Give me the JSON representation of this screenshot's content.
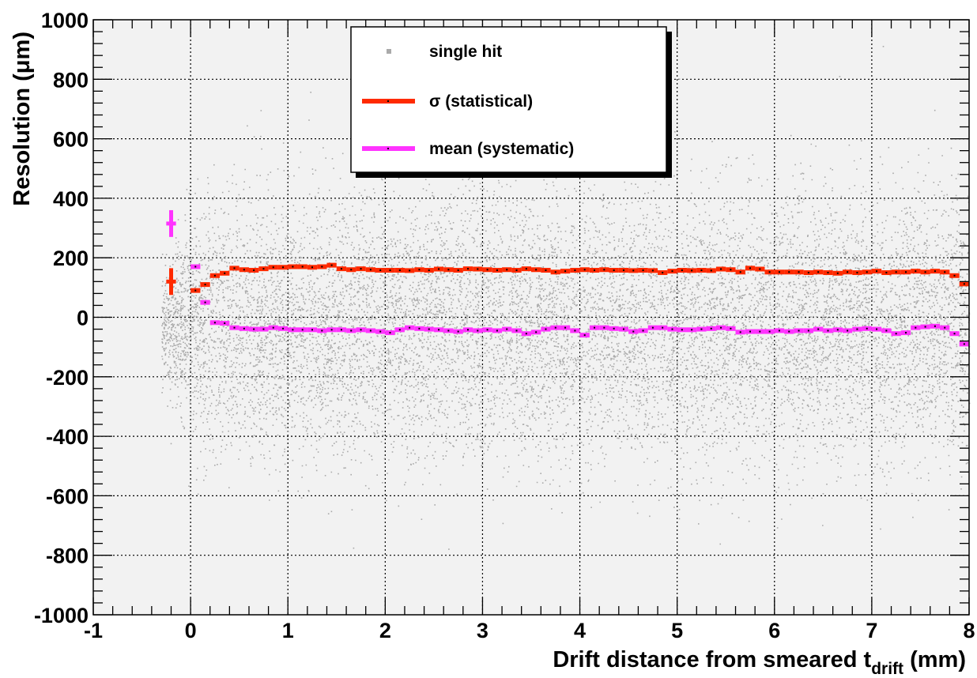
{
  "chart_data": {
    "type": "scatter",
    "title": "",
    "xlabel": "Drift distance from smeared t",
    "xlabel_sub": "drift",
    "xlabel_suffix": " (mm)",
    "ylabel": "Resolution (μm)",
    "xlim": [
      -1,
      8
    ],
    "ylim": [
      -1000,
      1000
    ],
    "x_ticks": [
      -1,
      0,
      1,
      2,
      3,
      4,
      5,
      6,
      7,
      8
    ],
    "y_ticks": [
      -1000,
      -800,
      -600,
      -400,
      -200,
      0,
      200,
      400,
      600,
      800,
      1000
    ],
    "grid": true,
    "legend_position": "top-center",
    "bin_width": 0.1,
    "series": [
      {
        "name": "single hit",
        "kind": "scatter",
        "color": "#aaaaaa",
        "distribution": {
          "x_range": [
            -0.3,
            8.0
          ],
          "center": -30,
          "spread": 220
        }
      },
      {
        "name": "σ (statistical)",
        "kind": "binned",
        "color": "#ff2a00",
        "x": [
          0.0,
          0.1,
          0.2,
          0.3,
          0.4,
          0.5,
          0.6,
          0.7,
          0.8,
          0.9,
          1.0,
          1.1,
          1.2,
          1.3,
          1.4,
          1.5,
          1.6,
          1.7,
          1.8,
          1.9,
          2.0,
          2.1,
          2.2,
          2.3,
          2.4,
          2.5,
          2.6,
          2.7,
          2.8,
          2.9,
          3.0,
          3.1,
          3.2,
          3.3,
          3.4,
          3.5,
          3.6,
          3.7,
          3.8,
          3.9,
          4.0,
          4.1,
          4.2,
          4.3,
          4.4,
          4.5,
          4.6,
          4.7,
          4.8,
          4.9,
          5.0,
          5.1,
          5.2,
          5.3,
          5.4,
          5.5,
          5.6,
          5.7,
          5.8,
          5.9,
          6.0,
          6.1,
          6.2,
          6.3,
          6.4,
          6.5,
          6.6,
          6.7,
          6.8,
          6.9,
          7.0,
          7.1,
          7.2,
          7.3,
          7.4,
          7.5,
          7.6,
          7.7,
          7.8,
          7.9
        ],
        "values": [
          90,
          110,
          140,
          148,
          165,
          160,
          158,
          163,
          168,
          168,
          170,
          170,
          168,
          170,
          175,
          163,
          160,
          163,
          160,
          158,
          158,
          158,
          157,
          160,
          158,
          162,
          160,
          158,
          163,
          162,
          160,
          158,
          160,
          158,
          163,
          160,
          158,
          152,
          155,
          158,
          160,
          158,
          160,
          158,
          158,
          157,
          158,
          157,
          150,
          155,
          158,
          157,
          158,
          157,
          162,
          160,
          152,
          165,
          162,
          152,
          152,
          152,
          152,
          150,
          152,
          150,
          148,
          152,
          150,
          152,
          155,
          150,
          152,
          152,
          155,
          152,
          155,
          152,
          140,
          112
        ],
        "extra_point": {
          "x": -0.2,
          "value": 120,
          "xerr": 0.05,
          "yerr": 45
        }
      },
      {
        "name": "mean (systematic)",
        "kind": "binned",
        "color": "#ff33ff",
        "x": [
          0.0,
          0.1,
          0.2,
          0.3,
          0.4,
          0.5,
          0.6,
          0.7,
          0.8,
          0.9,
          1.0,
          1.1,
          1.2,
          1.3,
          1.4,
          1.5,
          1.6,
          1.7,
          1.8,
          1.9,
          2.0,
          2.1,
          2.2,
          2.3,
          2.4,
          2.5,
          2.6,
          2.7,
          2.8,
          2.9,
          3.0,
          3.1,
          3.2,
          3.3,
          3.4,
          3.5,
          3.6,
          3.7,
          3.8,
          3.9,
          4.0,
          4.1,
          4.2,
          4.3,
          4.4,
          4.5,
          4.6,
          4.7,
          4.8,
          4.9,
          5.0,
          5.1,
          5.2,
          5.3,
          5.4,
          5.5,
          5.6,
          5.7,
          5.8,
          5.9,
          6.0,
          6.1,
          6.2,
          6.3,
          6.4,
          6.5,
          6.6,
          6.7,
          6.8,
          6.9,
          7.0,
          7.1,
          7.2,
          7.3,
          7.4,
          7.5,
          7.6,
          7.7,
          7.8,
          7.9
        ],
        "values": [
          170,
          50,
          -18,
          -20,
          -35,
          -38,
          -40,
          -40,
          -35,
          -38,
          -42,
          -42,
          -42,
          -45,
          -42,
          -42,
          -45,
          -42,
          -45,
          -48,
          -52,
          -42,
          -35,
          -38,
          -40,
          -42,
          -45,
          -48,
          -42,
          -45,
          -42,
          -45,
          -40,
          -45,
          -55,
          -50,
          -40,
          -35,
          -35,
          -45,
          -60,
          -35,
          -35,
          -38,
          -40,
          -48,
          -45,
          -35,
          -35,
          -40,
          -42,
          -42,
          -40,
          -38,
          -35,
          -38,
          -50,
          -48,
          -48,
          -48,
          -45,
          -48,
          -45,
          -45,
          -40,
          -45,
          -42,
          -45,
          -40,
          -38,
          -40,
          -45,
          -55,
          -52,
          -35,
          -32,
          -30,
          -35,
          -55,
          -90
        ],
        "extra_point": {
          "x": -0.2,
          "value": 315,
          "xerr": 0.05,
          "yerr": 45
        }
      }
    ]
  }
}
